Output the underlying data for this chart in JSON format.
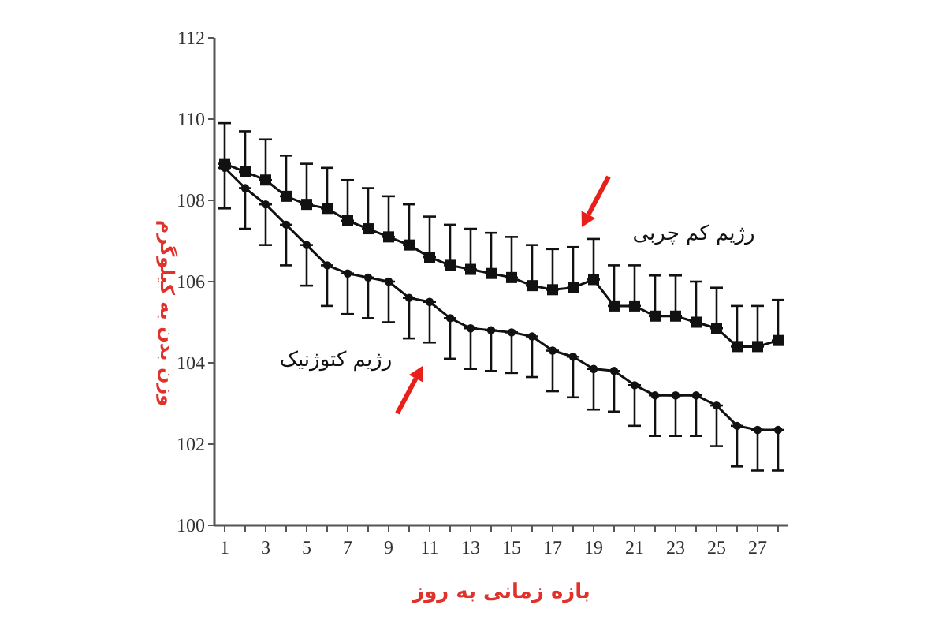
{
  "chart_data": {
    "type": "line",
    "xlabel": "بازه زمانی به روز",
    "ylabel": "وزن بدن به کیلوگرم",
    "x": [
      1,
      2,
      3,
      4,
      5,
      6,
      7,
      8,
      9,
      10,
      11,
      12,
      13,
      14,
      15,
      16,
      17,
      18,
      19,
      20,
      21,
      22,
      23,
      24,
      25,
      26,
      27,
      28
    ],
    "xlim": [
      0.5,
      28.5
    ],
    "xticks": [
      1,
      {
        "value": 2,
        "label": null
      },
      3,
      {
        "value": 4,
        "label": null
      },
      5,
      {
        "value": 6,
        "label": null
      },
      7,
      {
        "value": 8,
        "label": null
      },
      9,
      {
        "value": 10,
        "label": null
      },
      11,
      {
        "value": 12,
        "label": null
      },
      13,
      {
        "value": 14,
        "label": null
      },
      15,
      {
        "value": 16,
        "label": null
      },
      17,
      {
        "value": 18,
        "label": null
      },
      19,
      {
        "value": 20,
        "label": null
      },
      21,
      {
        "value": 22,
        "label": null
      },
      23,
      {
        "value": 24,
        "label": null
      },
      25,
      {
        "value": 26,
        "label": null
      },
      27,
      {
        "value": 28,
        "label": null
      }
    ],
    "ylim": [
      100,
      112
    ],
    "yticks": [
      100,
      102,
      104,
      106,
      108,
      110,
      112
    ],
    "grid": false,
    "series": [
      {
        "name": "رژیم کم چربی",
        "color": "#111111",
        "marker": "square",
        "values": [
          108.9,
          108.7,
          108.5,
          108.1,
          107.9,
          107.8,
          107.5,
          107.3,
          107.1,
          106.9,
          106.6,
          106.4,
          106.3,
          106.2,
          106.1,
          105.9,
          105.8,
          105.85,
          106.05,
          105.4,
          105.4,
          105.15,
          105.15,
          105.0,
          104.85,
          104.4,
          104.4,
          104.55
        ],
        "errors": [
          [
            108.9,
            109.9
          ],
          [
            108.7,
            109.7
          ],
          [
            108.5,
            109.5
          ],
          [
            108.1,
            109.1
          ],
          [
            107.9,
            108.9
          ],
          [
            107.8,
            108.8
          ],
          [
            107.5,
            108.5
          ],
          [
            107.3,
            108.3
          ],
          [
            107.1,
            108.1
          ],
          [
            106.9,
            107.9
          ],
          [
            106.6,
            107.6
          ],
          [
            106.4,
            107.4
          ],
          [
            106.3,
            107.3
          ],
          [
            106.2,
            107.2
          ],
          [
            106.1,
            107.1
          ],
          [
            105.9,
            106.9
          ],
          [
            105.8,
            106.8
          ],
          [
            105.85,
            106.85
          ],
          [
            106.05,
            107.05
          ],
          [
            105.4,
            106.4
          ],
          [
            105.4,
            106.4
          ],
          [
            105.15,
            106.15
          ],
          [
            105.15,
            106.15
          ],
          [
            105.0,
            106.0
          ],
          [
            104.85,
            105.85
          ],
          [
            104.4,
            105.4
          ],
          [
            104.4,
            105.4
          ],
          [
            104.55,
            105.55
          ]
        ]
      },
      {
        "name": "رژیم کتوژنیک",
        "color": "#111111",
        "marker": "circle",
        "values": [
          108.8,
          108.3,
          107.9,
          107.4,
          106.9,
          106.4,
          106.2,
          106.1,
          106.0,
          105.6,
          105.5,
          105.1,
          104.85,
          104.8,
          104.75,
          104.65,
          104.3,
          104.15,
          103.85,
          103.8,
          103.45,
          103.2,
          103.2,
          103.2,
          102.95,
          102.45,
          102.35,
          102.35
        ],
        "errors": [
          [
            107.8,
            108.8
          ],
          [
            107.3,
            108.3
          ],
          [
            106.9,
            107.9
          ],
          [
            106.4,
            107.4
          ],
          [
            105.9,
            106.9
          ],
          [
            105.4,
            106.4
          ],
          [
            105.2,
            106.2
          ],
          [
            105.1,
            106.1
          ],
          [
            105.0,
            106.0
          ],
          [
            104.6,
            105.6
          ],
          [
            104.5,
            105.5
          ],
          [
            104.1,
            105.1
          ],
          [
            103.85,
            104.85
          ],
          [
            103.8,
            104.8
          ],
          [
            103.75,
            104.75
          ],
          [
            103.65,
            104.65
          ],
          [
            103.3,
            104.3
          ],
          [
            103.15,
            104.15
          ],
          [
            102.85,
            103.85
          ],
          [
            102.8,
            103.8
          ],
          [
            102.45,
            103.45
          ],
          [
            102.2,
            103.2
          ],
          [
            102.2,
            103.2
          ],
          [
            102.2,
            103.2
          ],
          [
            101.95,
            102.95
          ],
          [
            101.45,
            102.45
          ],
          [
            101.35,
            102.35
          ],
          [
            101.35,
            102.35
          ]
        ]
      }
    ]
  }
}
